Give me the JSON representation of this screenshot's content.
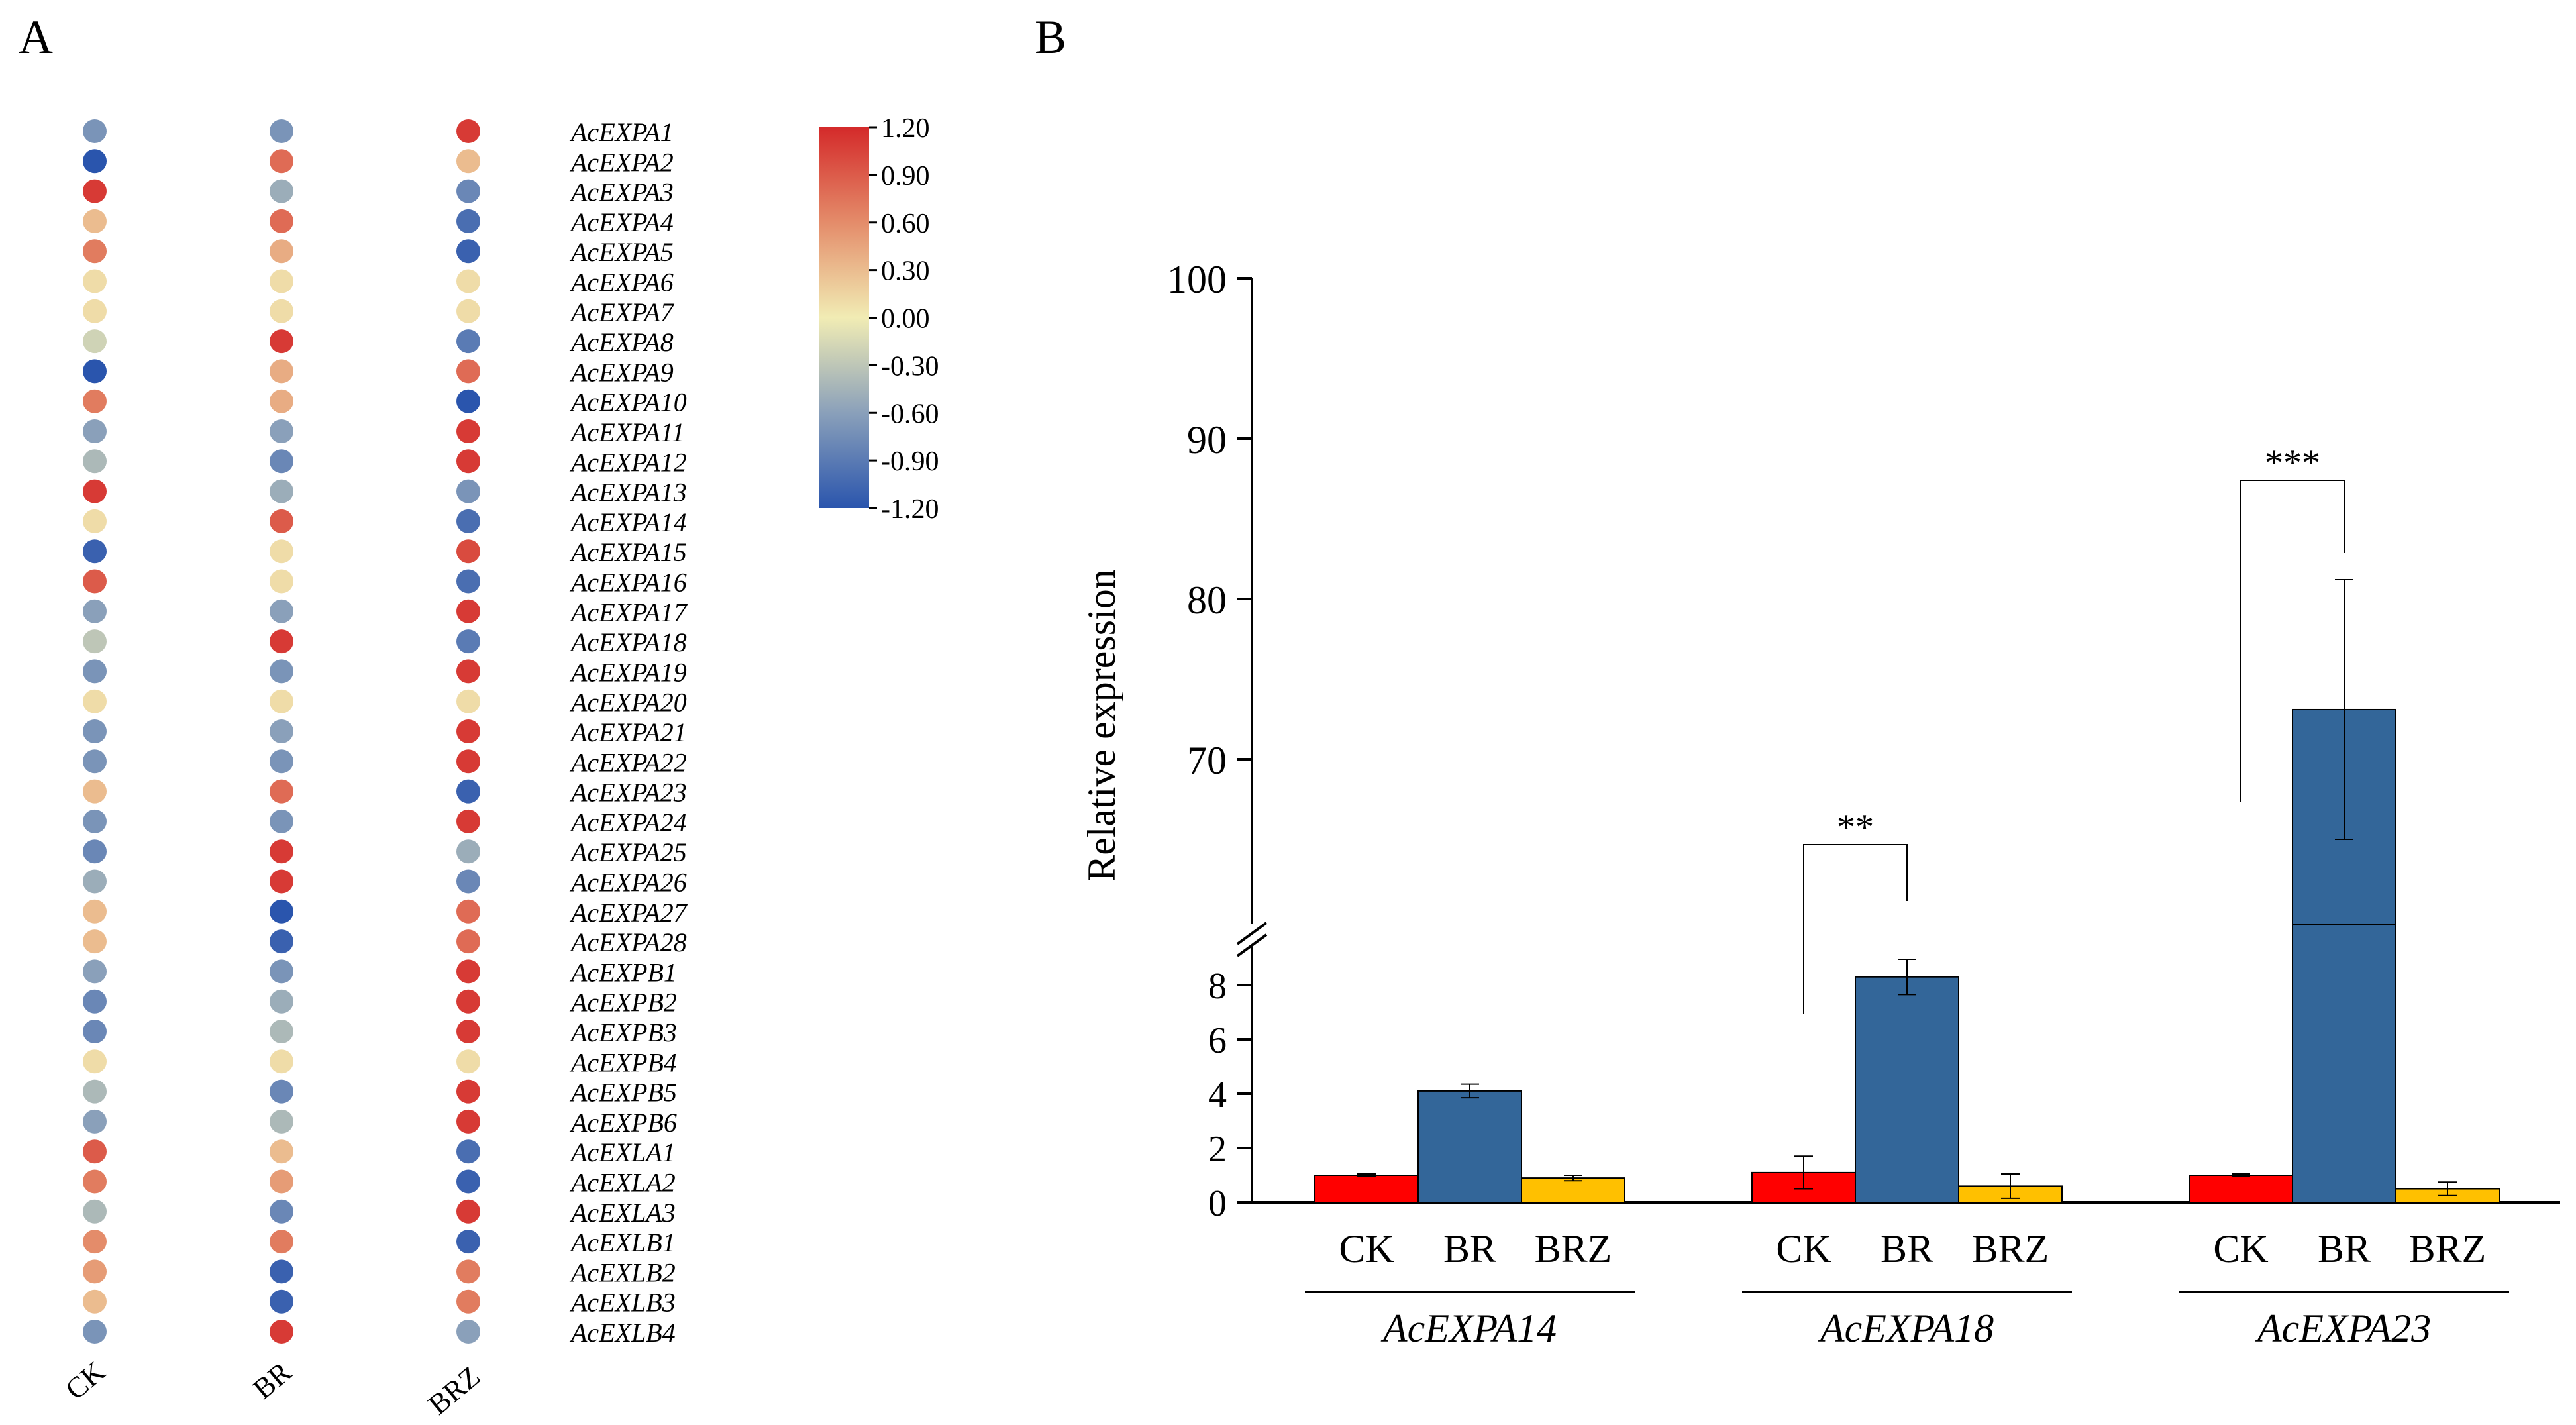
{
  "figure": {
    "panel_a_label": "A",
    "panel_b_label": "B"
  },
  "chart_data": [
    {
      "type": "heatmap",
      "panel": "A",
      "columns": [
        "CK",
        "BR",
        "BRZ"
      ],
      "rows": [
        "AcEXPA1",
        "AcEXPA2",
        "AcEXPA3",
        "AcEXPA4",
        "AcEXPA5",
        "AcEXPA6",
        "AcEXPA7",
        "AcEXPA8",
        "AcEXPA9",
        "AcEXPA10",
        "AcEXPA11",
        "AcEXPA12",
        "AcEXPA13",
        "AcEXPA14",
        "AcEXPA15",
        "AcEXPA16",
        "AcEXPA17",
        "AcEXPA18",
        "AcEXPA19",
        "AcEXPA20",
        "AcEXPA21",
        "AcEXPA22",
        "AcEXPA23",
        "AcEXPA24",
        "AcEXPA25",
        "AcEXPA26",
        "AcEXPA27",
        "AcEXPA28",
        "AcEXPB1",
        "AcEXPB2",
        "AcEXPB3",
        "AcEXPB4",
        "AcEXPB5",
        "AcEXPB6",
        "AcEXLA1",
        "AcEXLA2",
        "AcEXLA3",
        "AcEXLB1",
        "AcEXLB2",
        "AcEXLB3",
        "AcEXLB4"
      ],
      "values": [
        [
          -0.7,
          -0.7,
          1.1
        ],
        [
          -1.2,
          0.8,
          0.3
        ],
        [
          1.1,
          -0.5,
          -0.8
        ],
        [
          0.3,
          0.8,
          -1.0
        ],
        [
          0.7,
          0.4,
          -1.1
        ],
        [
          0.1,
          0.1,
          0.1
        ],
        [
          0.1,
          0.1,
          0.1
        ],
        [
          -0.2,
          1.1,
          -0.9
        ],
        [
          -1.2,
          0.4,
          0.8
        ],
        [
          0.7,
          0.4,
          -1.2
        ],
        [
          -0.6,
          -0.6,
          1.1
        ],
        [
          -0.4,
          -0.8,
          1.1
        ],
        [
          1.1,
          -0.5,
          -0.7
        ],
        [
          0.1,
          0.9,
          -1.0
        ],
        [
          -1.1,
          0.1,
          1.0
        ],
        [
          0.9,
          0.1,
          -1.0
        ],
        [
          -0.6,
          -0.6,
          1.1
        ],
        [
          -0.3,
          1.1,
          -0.9
        ],
        [
          -0.7,
          -0.7,
          1.1
        ],
        [
          0.1,
          0.1,
          0.1
        ],
        [
          -0.7,
          -0.6,
          1.1
        ],
        [
          -0.7,
          -0.7,
          1.1
        ],
        [
          0.3,
          0.8,
          -1.1
        ],
        [
          -0.7,
          -0.7,
          1.1
        ],
        [
          -0.8,
          1.1,
          -0.5
        ],
        [
          -0.5,
          1.1,
          -0.8
        ],
        [
          0.3,
          -1.2,
          0.8
        ],
        [
          0.3,
          -1.1,
          0.8
        ],
        [
          -0.6,
          -0.7,
          1.1
        ],
        [
          -0.8,
          -0.5,
          1.1
        ],
        [
          -0.8,
          -0.4,
          1.1
        ],
        [
          0.1,
          0.1,
          0.1
        ],
        [
          -0.4,
          -0.8,
          1.1
        ],
        [
          -0.6,
          -0.4,
          1.1
        ],
        [
          0.9,
          0.3,
          -1.0
        ],
        [
          0.7,
          0.5,
          -1.1
        ],
        [
          -0.4,
          -0.8,
          1.1
        ],
        [
          0.6,
          0.7,
          -1.1
        ],
        [
          0.5,
          -1.1,
          0.7
        ],
        [
          0.3,
          -1.1,
          0.7
        ],
        [
          -0.7,
          1.1,
          -0.6
        ]
      ],
      "colorbar": {
        "ticks": [
          "1.20",
          "0.90",
          "0.60",
          "0.30",
          "0.00",
          "-0.30",
          "-0.60",
          "-0.90",
          "-1.20"
        ],
        "range": [
          -1.2,
          1.2
        ],
        "stops": [
          {
            "value": -1.2,
            "color": "#2a55ad"
          },
          {
            "value": -0.6,
            "color": "#8aa0ba"
          },
          {
            "value": 0.0,
            "color": "#f1ecb4"
          },
          {
            "value": 0.6,
            "color": "#e48c6a"
          },
          {
            "value": 1.2,
            "color": "#d42a2a"
          }
        ]
      }
    },
    {
      "type": "bar",
      "panel": "B",
      "ylabel": "Relative expression",
      "axis_break": {
        "lower": [
          0,
          9
        ],
        "upper": [
          60,
          100
        ]
      },
      "lower_ticks": [
        0,
        2,
        4,
        6,
        8
      ],
      "upper_ticks": [
        70,
        80,
        90,
        100
      ],
      "series_colors": {
        "CK": "#ff0000",
        "BR": "#336699",
        "BRZ": "#ffc000"
      },
      "groups": [
        {
          "gene": "AcEXPA14",
          "bars": [
            {
              "label": "CK",
              "value": 1.0,
              "err": 0.05
            },
            {
              "label": "BR",
              "value": 4.1,
              "err": 0.25
            },
            {
              "label": "BRZ",
              "value": 0.9,
              "err": 0.1
            }
          ],
          "significance": null
        },
        {
          "gene": "AcEXPA18",
          "bars": [
            {
              "label": "CK",
              "value": 1.1,
              "err": 0.6
            },
            {
              "label": "BR",
              "value": 8.3,
              "err": 0.65
            },
            {
              "label": "BRZ",
              "value": 0.6,
              "err": 0.45
            }
          ],
          "significance": "**"
        },
        {
          "gene": "AcEXPA23",
          "bars": [
            {
              "label": "CK",
              "value": 1.0,
              "err": 0.05
            },
            {
              "label": "BR",
              "value": 73.1,
              "err": 8.1
            },
            {
              "label": "BRZ",
              "value": 0.5,
              "err": 0.25
            }
          ],
          "significance": "***"
        }
      ]
    }
  ]
}
